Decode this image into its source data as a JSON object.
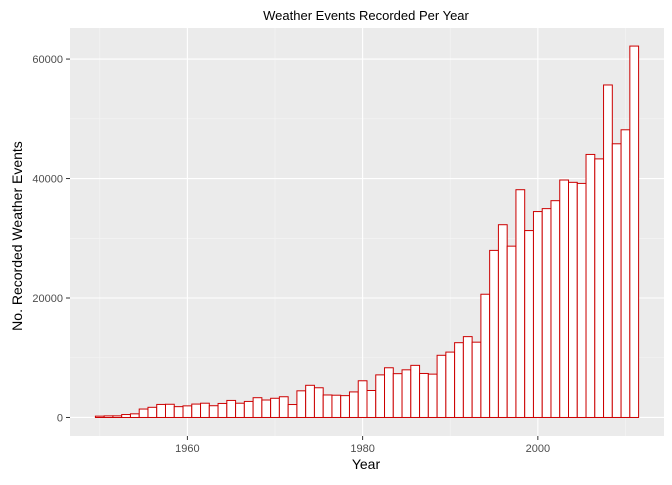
{
  "chart_data": {
    "type": "bar",
    "title": "Weather Events Recorded Per Year",
    "xlabel": "Year",
    "ylabel": "No. Recorded Weather Events",
    "xlim": [
      1946.6,
      2014.4
    ],
    "ylim": [
      -3100,
      65200
    ],
    "x_ticks": [
      1960,
      1980,
      2000
    ],
    "y_ticks": [
      0,
      20000,
      40000,
      60000
    ],
    "x_tick_labels": [
      "1960",
      "1980",
      "2000"
    ],
    "y_tick_labels": [
      "0",
      "20000",
      "40000",
      "60000"
    ],
    "grid": true,
    "colors": {
      "panel_background": "#ebebeb",
      "grid_major": "#ffffff",
      "grid_minor": "#f5f5f5",
      "bar_fill": "#ffffff",
      "bar_outline": "#cc0000"
    },
    "x": [
      1950,
      1951,
      1952,
      1953,
      1954,
      1955,
      1956,
      1957,
      1958,
      1959,
      1960,
      1961,
      1962,
      1963,
      1964,
      1965,
      1966,
      1967,
      1968,
      1969,
      1970,
      1971,
      1972,
      1973,
      1974,
      1975,
      1976,
      1977,
      1978,
      1979,
      1980,
      1981,
      1982,
      1983,
      1984,
      1985,
      1986,
      1987,
      1988,
      1989,
      1990,
      1991,
      1992,
      1993,
      1994,
      1995,
      1996,
      1997,
      1998,
      1999,
      2000,
      2001,
      2002,
      2003,
      2004,
      2005,
      2006,
      2007,
      2008,
      2009,
      2010,
      2011
    ],
    "values": [
      223,
      269,
      272,
      492,
      609,
      1413,
      1703,
      2184,
      2213,
      1813,
      1945,
      2246,
      2389,
      1968,
      2348,
      2855,
      2388,
      2688,
      3312,
      2926,
      3215,
      3471,
      2168,
      4463,
      5387,
      4975,
      3768,
      3728,
      3657,
      4279,
      6146,
      4517,
      7132,
      8322,
      7335,
      7979,
      8726,
      7367,
      7257,
      10410,
      10946,
      12522,
      13534,
      12607,
      20631,
      27970,
      32270,
      28680,
      38128,
      31289,
      34471,
      34962,
      36293,
      39752,
      39363,
      39184,
      44034,
      43289,
      55663,
      45817,
      48161,
      62174
    ]
  }
}
